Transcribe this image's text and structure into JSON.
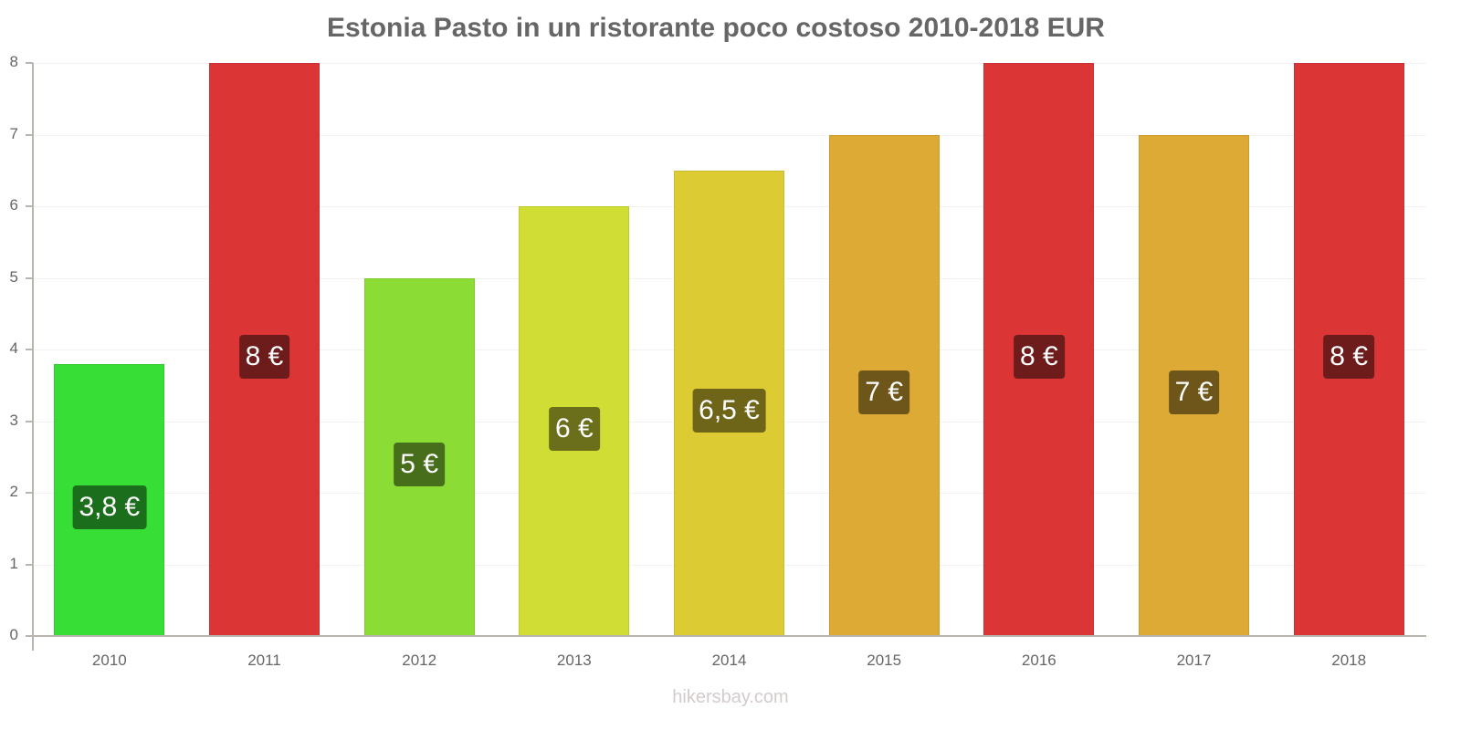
{
  "chart_data": {
    "type": "bar",
    "title": "Estonia Pasto in un ristorante poco costoso 2010-2018 EUR",
    "xlabel": "",
    "ylabel": "",
    "ylim": [
      0,
      8
    ],
    "yticks": [
      0,
      1,
      2,
      3,
      4,
      5,
      6,
      7,
      8
    ],
    "grid": true,
    "legend": null,
    "categories": [
      "2010",
      "2011",
      "2012",
      "2013",
      "2014",
      "2015",
      "2016",
      "2017",
      "2018"
    ],
    "values": [
      3.8,
      8,
      5,
      6,
      6.5,
      7,
      8,
      7,
      8
    ],
    "data_labels": [
      "3,8 €",
      "8 €",
      "5 €",
      "6 €",
      "6,5 €",
      "7 €",
      "8 €",
      "7 €",
      "8 €"
    ],
    "bar_colors": [
      "#36de36",
      "#db3535",
      "#8bdd35",
      "#d0dd35",
      "#dccb33",
      "#dcaa35",
      "#db3535",
      "#dcaa35",
      "#db3535"
    ],
    "label_colors": [
      "#1b6e1b",
      "#6e1b1b",
      "#466e1b",
      "#6b6e1b",
      "#6e6519",
      "#6e5519",
      "#6e1b1b",
      "#6e5519",
      "#6e1b1b"
    ]
  },
  "watermark": "hikersbay.com"
}
